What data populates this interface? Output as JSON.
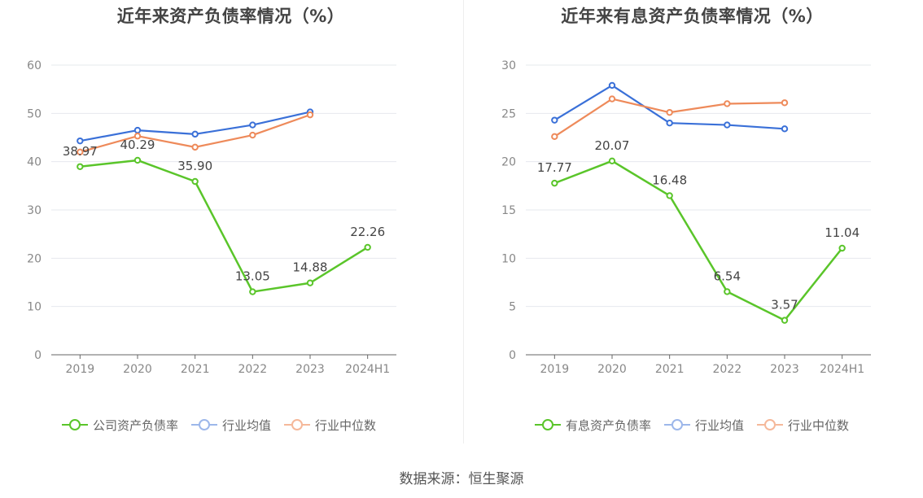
{
  "source": "数据来源：恒生聚源",
  "chart_data": [
    {
      "type": "line",
      "title": "近年来资产负债率情况（%）",
      "categories": [
        "2019",
        "2020",
        "2021",
        "2022",
        "2023",
        "2024H1"
      ],
      "ylim": [
        0,
        60
      ],
      "yticks": [
        0,
        10,
        20,
        30,
        40,
        50,
        60
      ],
      "grid": true,
      "legend_position": "bottom",
      "series": [
        {
          "name": "公司资产负债率",
          "color": "#5ac52a",
          "values": [
            38.97,
            40.29,
            35.9,
            13.05,
            14.88,
            22.26
          ],
          "labels": [
            "38.97",
            "40.29",
            "35.90",
            "13.05",
            "14.88",
            "22.26"
          ]
        },
        {
          "name": "行业均值",
          "color": "#3a70d8",
          "values": [
            44.3,
            46.5,
            45.7,
            47.6,
            50.3,
            null
          ]
        },
        {
          "name": "行业中位数",
          "color": "#ee8a5a",
          "values": [
            42.0,
            45.3,
            43.0,
            45.5,
            49.7,
            null
          ]
        }
      ]
    },
    {
      "type": "line",
      "title": "近年来有息资产负债率情况（%）",
      "categories": [
        "2019",
        "2020",
        "2021",
        "2022",
        "2023",
        "2024H1"
      ],
      "ylim": [
        0,
        30
      ],
      "yticks": [
        0,
        5,
        10,
        15,
        20,
        25,
        30
      ],
      "grid": true,
      "legend_position": "bottom",
      "series": [
        {
          "name": "有息资产负债率",
          "color": "#5ac52a",
          "values": [
            17.77,
            20.07,
            16.48,
            6.54,
            3.57,
            11.04
          ],
          "labels": [
            "17.77",
            "20.07",
            "16.48",
            "6.54",
            "3.57",
            "11.04"
          ]
        },
        {
          "name": "行业均值",
          "color": "#3a70d8",
          "values": [
            24.3,
            27.9,
            24.0,
            23.8,
            23.4,
            null
          ]
        },
        {
          "name": "行业中位数",
          "color": "#ee8a5a",
          "values": [
            22.6,
            26.5,
            25.1,
            26.0,
            26.1,
            null
          ]
        }
      ]
    }
  ]
}
